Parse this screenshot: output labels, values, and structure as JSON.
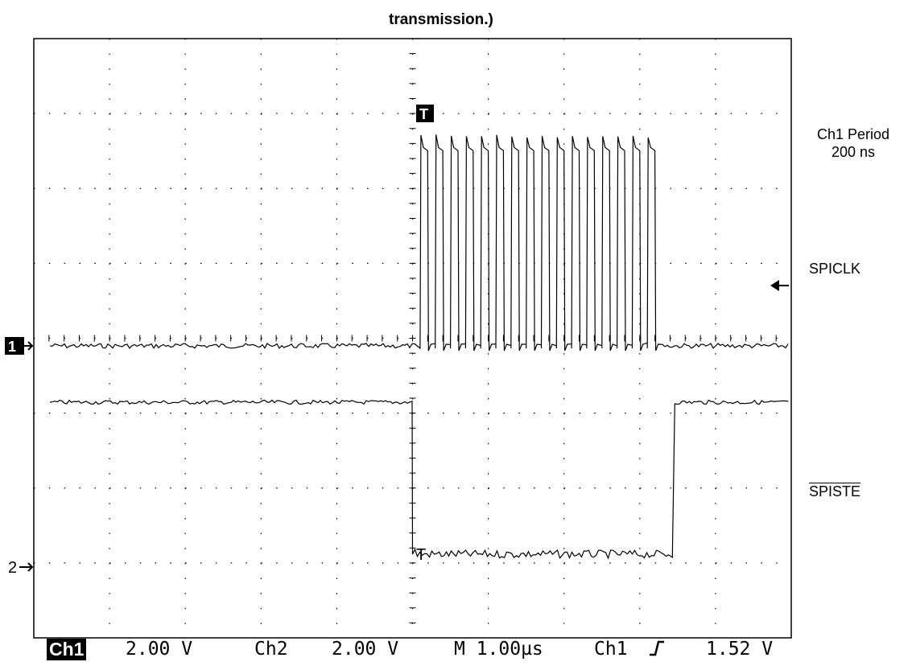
{
  "header": {
    "title": "transmission.)"
  },
  "measurement": {
    "line1": "Ch1 Period",
    "line2": "200 ns"
  },
  "labels": {
    "spiclk": "SPICLK",
    "spiste": "SPISTE"
  },
  "markers": {
    "ch1": "1",
    "ch2": "2",
    "trigger": "T"
  },
  "status_bar": {
    "ch1_label": "Ch1",
    "ch1_scale": "2.00 V",
    "ch2_label": "Ch2",
    "ch2_scale": "2.00 V",
    "timebase": "M 1.00µs",
    "trigger_source": "Ch1",
    "trigger_level": "1.52 V"
  },
  "chart_data": {
    "type": "line",
    "title": "transmission.)",
    "xlabel": "",
    "ylabel": "",
    "x_unit": "µs",
    "x_divisions": 10,
    "y_divisions": 8,
    "xlim": [
      -5.0,
      5.0
    ],
    "grid": true,
    "series": [
      {
        "name": "SPICLK",
        "unit": "V",
        "baseline": 0.0,
        "high": 5.6,
        "clock_start": 0.1,
        "period": 0.2,
        "pulses": 16
      },
      {
        "name": "SPISTE",
        "unit": "V",
        "idle_level": -1.1,
        "active_level": -5.5,
        "low_from": 0.0,
        "low_until": 3.43
      }
    ],
    "trigger_level": 1.52
  }
}
